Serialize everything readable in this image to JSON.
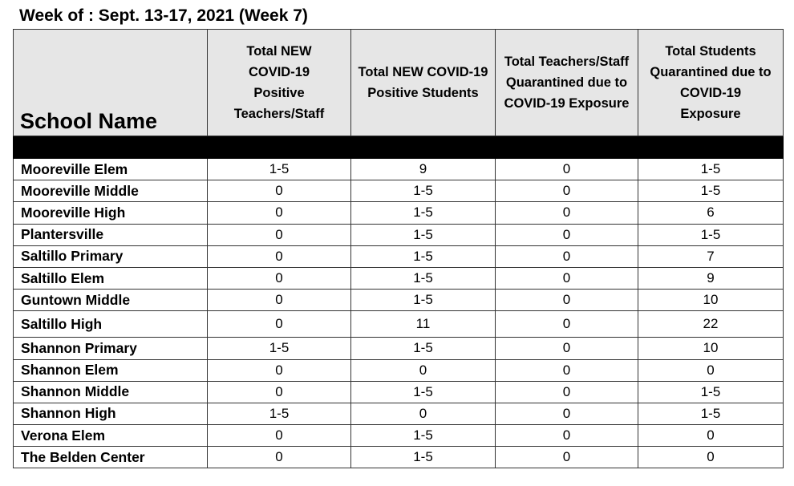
{
  "title": "Week of : Sept. 13-17, 2021 (Week 7)",
  "headers": {
    "school": "School Name",
    "c1": "Total NEW COVID-19 Positive Teachers/Staff",
    "c2": "Total NEW COVID-19 Positive Students",
    "c3": "Total Teachers/Staff Quarantined due to COVID-19 Exposure",
    "c4": "Total Students Quarantined due to COVID-19 Exposure"
  },
  "rows": [
    {
      "name": "Mooreville Elem",
      "c1": "1-5",
      "c2": "9",
      "c3": "0",
      "c4": "1-5"
    },
    {
      "name": "Mooreville Middle",
      "c1": "0",
      "c2": "1-5",
      "c3": "0",
      "c4": "1-5"
    },
    {
      "name": "Mooreville High",
      "c1": "0",
      "c2": "1-5",
      "c3": "0",
      "c4": "6"
    },
    {
      "name": "Plantersville",
      "c1": "0",
      "c2": "1-5",
      "c3": "0",
      "c4": "1-5"
    },
    {
      "name": "Saltillo Primary",
      "c1": "0",
      "c2": "1-5",
      "c3": "0",
      "c4": "7"
    },
    {
      "name": "Saltillo Elem",
      "c1": "0",
      "c2": "1-5",
      "c3": "0",
      "c4": "9"
    },
    {
      "name": "Guntown Middle",
      "c1": "0",
      "c2": "1-5",
      "c3": "0",
      "c4": "10"
    },
    {
      "name": "Saltillo High",
      "c1": "0",
      "c2": "11",
      "c3": "0",
      "c4": "22"
    },
    {
      "name": "Shannon Primary",
      "c1": "1-5",
      "c2": "1-5",
      "c3": "0",
      "c4": "10"
    },
    {
      "name": "Shannon Elem",
      "c1": "0",
      "c2": "0",
      "c3": "0",
      "c4": "0"
    },
    {
      "name": "Shannon Middle",
      "c1": "0",
      "c2": "1-5",
      "c3": "0",
      "c4": "1-5"
    },
    {
      "name": "Shannon High",
      "c1": "1-5",
      "c2": "0",
      "c3": "0",
      "c4": "1-5"
    },
    {
      "name": "Verona Elem",
      "c1": "0",
      "c2": "1-5",
      "c3": "0",
      "c4": "0"
    },
    {
      "name": "The Belden Center",
      "c1": "0",
      "c2": "1-5",
      "c3": "0",
      "c4": "0"
    }
  ]
}
